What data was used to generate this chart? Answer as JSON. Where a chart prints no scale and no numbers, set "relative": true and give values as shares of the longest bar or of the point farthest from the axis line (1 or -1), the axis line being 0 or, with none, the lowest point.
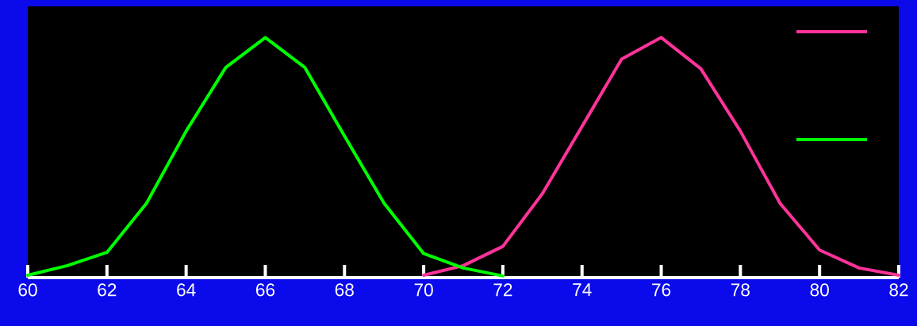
{
  "chart_data": {
    "type": "line",
    "relative": true,
    "xlim": [
      60,
      82
    ],
    "xticks": [
      60,
      62,
      64,
      66,
      68,
      70,
      72,
      74,
      76,
      78,
      80,
      82
    ],
    "marker": "none",
    "line_style": "solid",
    "series": [
      {
        "color": "#ff3399",
        "x": [
          70,
          71,
          72,
          73,
          74,
          75,
          76,
          77,
          78,
          79,
          80,
          81,
          82
        ],
        "values": [
          0.01,
          0.05,
          0.13,
          0.35,
          0.63,
          0.91,
          1.0,
          0.87,
          0.61,
          0.31,
          0.115,
          0.04,
          0.01
        ]
      },
      {
        "color": "#00ff00",
        "x": [
          60,
          61,
          62,
          63,
          64,
          65,
          66,
          67,
          68,
          69,
          70,
          71,
          72
        ],
        "values": [
          0.01,
          0.05,
          0.105,
          0.31,
          0.61,
          0.875,
          1.0,
          0.875,
          0.59,
          0.31,
          0.1,
          0.04,
          0.007
        ]
      }
    ]
  }
}
